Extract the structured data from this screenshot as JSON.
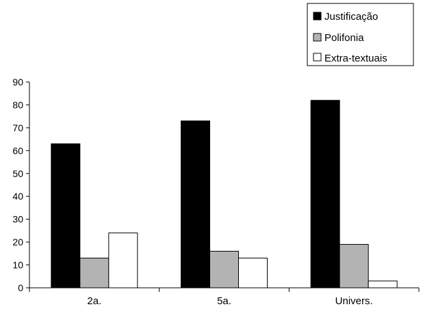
{
  "chart_data": {
    "type": "bar",
    "title": "",
    "xlabel": "",
    "ylabel": "",
    "categories": [
      "2a.",
      "5a.",
      "Univers."
    ],
    "series": [
      {
        "name": "Justificação",
        "values": [
          63,
          73,
          82
        ],
        "color": "#000000"
      },
      {
        "name": "Polifonia",
        "values": [
          13,
          16,
          19
        ],
        "color": "#b3b3b3"
      },
      {
        "name": "Extra-textuais",
        "values": [
          24,
          13,
          3
        ],
        "color": "#ffffff"
      }
    ],
    "ylim": [
      0,
      90
    ],
    "yticks": [
      0,
      10,
      20,
      30,
      40,
      50,
      60,
      70,
      80,
      90
    ],
    "grid": false,
    "legend": "top-right",
    "bar_outline": "#000000"
  }
}
